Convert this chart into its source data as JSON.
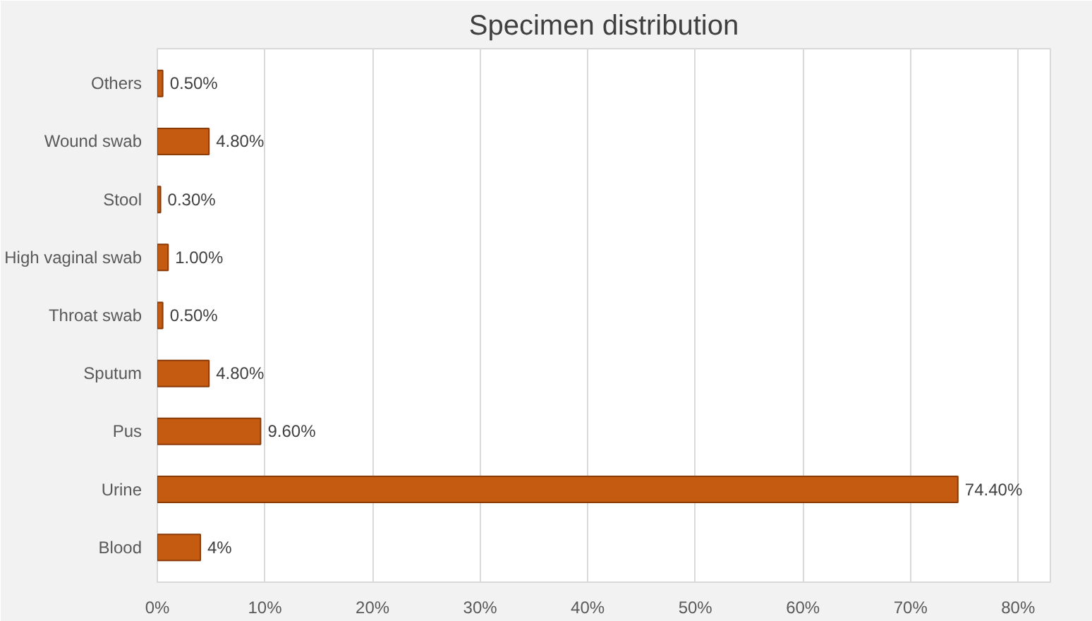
{
  "chart_data": {
    "type": "bar",
    "orientation": "horizontal",
    "title": "Specimen distribution",
    "categories": [
      "Others",
      "Wound swab",
      "Stool",
      "High vaginal swab",
      "Throat swab",
      "Sputum",
      "Pus",
      "Urine",
      "Blood"
    ],
    "values": [
      0.5,
      4.8,
      0.3,
      1.0,
      0.5,
      4.8,
      9.6,
      74.4,
      4
    ],
    "value_labels": [
      "0.50%",
      "4.80%",
      "0.30%",
      "1.00%",
      "0.50%",
      "4.80%",
      "9.60%",
      "74.40%",
      "4%"
    ],
    "color": "#c55a11",
    "xlim": [
      0,
      83
    ],
    "xticks": [
      {
        "value": 0,
        "label": "0%"
      },
      {
        "value": 10,
        "label": "10%"
      },
      {
        "value": 20,
        "label": "20%"
      },
      {
        "value": 30,
        "label": "30%"
      },
      {
        "value": 40,
        "label": "40%"
      },
      {
        "value": 50,
        "label": "50%"
      },
      {
        "value": 60,
        "label": "60%"
      },
      {
        "value": 70,
        "label": "70%"
      },
      {
        "value": 80,
        "label": "80%"
      }
    ],
    "grid": "x"
  }
}
